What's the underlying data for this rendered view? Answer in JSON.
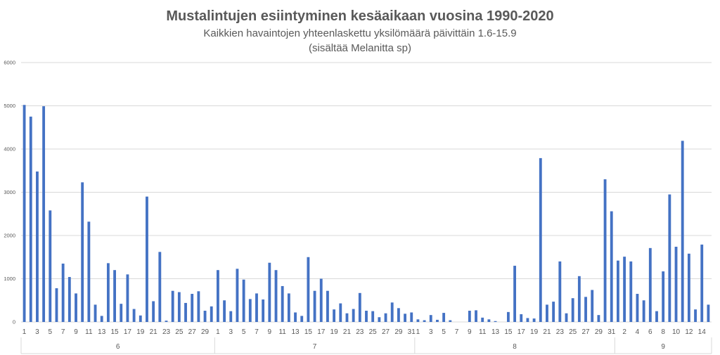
{
  "chart_data": {
    "type": "bar",
    "title": "Mustalintujen esiintyminen kesäaikaan vuosina 1990-2020",
    "subtitle_lines": [
      "Kaikkien havaintojen yhteenlaskettu yksilömäärä päivittäin 1.6-15.9",
      "(sisältää Melanitta sp)"
    ],
    "xlabel": "",
    "ylabel": "",
    "ylim": [
      0,
      6000
    ],
    "yticks": [
      0,
      1000,
      2000,
      3000,
      4000,
      5000,
      6000
    ],
    "grid": true,
    "legend": "none",
    "color": "#4472c4",
    "groups": [
      {
        "month": "6",
        "days": [
          1,
          2,
          3,
          4,
          5,
          6,
          7,
          8,
          9,
          10,
          11,
          12,
          13,
          14,
          15,
          16,
          17,
          18,
          19,
          20,
          21,
          22,
          23,
          24,
          25,
          26,
          27,
          28,
          29,
          30
        ],
        "values": [
          5020,
          4750,
          3480,
          4990,
          2580,
          780,
          1350,
          1040,
          660,
          3230,
          2320,
          400,
          140,
          1360,
          1200,
          420,
          1100,
          300,
          150,
          2900,
          480,
          1620,
          30,
          720,
          690,
          440,
          650,
          710,
          260,
          360
        ]
      },
      {
        "month": "7",
        "days": [
          1,
          2,
          3,
          4,
          5,
          6,
          7,
          8,
          9,
          10,
          11,
          12,
          13,
          14,
          15,
          16,
          17,
          18,
          19,
          20,
          21,
          22,
          23,
          24,
          25,
          26,
          27,
          28,
          29,
          30,
          31
        ],
        "values": [
          1200,
          500,
          250,
          1230,
          980,
          530,
          660,
          520,
          1370,
          1200,
          830,
          660,
          220,
          140,
          1500,
          720,
          1000,
          720,
          290,
          430,
          200,
          300,
          670,
          260,
          250,
          110,
          200,
          450,
          320,
          190,
          220
        ]
      },
      {
        "month": "8",
        "days": [
          1,
          2,
          3,
          4,
          5,
          6,
          7,
          8,
          9,
          10,
          11,
          12,
          13,
          14,
          15,
          16,
          17,
          18,
          19,
          20,
          21,
          22,
          23,
          24,
          25,
          26,
          27,
          28,
          29,
          30,
          31
        ],
        "values": [
          60,
          40,
          160,
          50,
          210,
          40,
          0,
          0,
          260,
          270,
          100,
          60,
          20,
          0,
          230,
          1300,
          180,
          90,
          80,
          3790,
          400,
          470,
          1400,
          200,
          550,
          1060,
          580,
          740,
          160,
          3300,
          2560
        ]
      },
      {
        "month": "9",
        "days": [
          1,
          2,
          3,
          4,
          5,
          6,
          7,
          8,
          9,
          10,
          11,
          12,
          13,
          14,
          15
        ],
        "values": [
          1420,
          1510,
          1400,
          650,
          500,
          1710,
          250,
          1170,
          2950,
          1740,
          4190,
          1580,
          290,
          1790,
          400
        ]
      }
    ],
    "x_tick_labels_shown": {
      "6": [
        "1",
        "3",
        "5",
        "7",
        "9",
        "11",
        "13",
        "15",
        "17",
        "19",
        "21",
        "23",
        "25",
        "27",
        "29"
      ],
      "7": [
        "1",
        "3",
        "5",
        "7",
        "9",
        "11",
        "13",
        "15",
        "17",
        "19",
        "21",
        "23",
        "25",
        "27",
        "29",
        "31"
      ],
      "8": [
        "1",
        "3",
        "5",
        "7",
        "9",
        "11",
        "13",
        "15",
        "17",
        "19",
        "21",
        "23",
        "25",
        "27",
        "29",
        "31"
      ],
      "9": [
        "2",
        "4",
        "6",
        "8",
        "10",
        "12",
        "14"
      ]
    }
  }
}
